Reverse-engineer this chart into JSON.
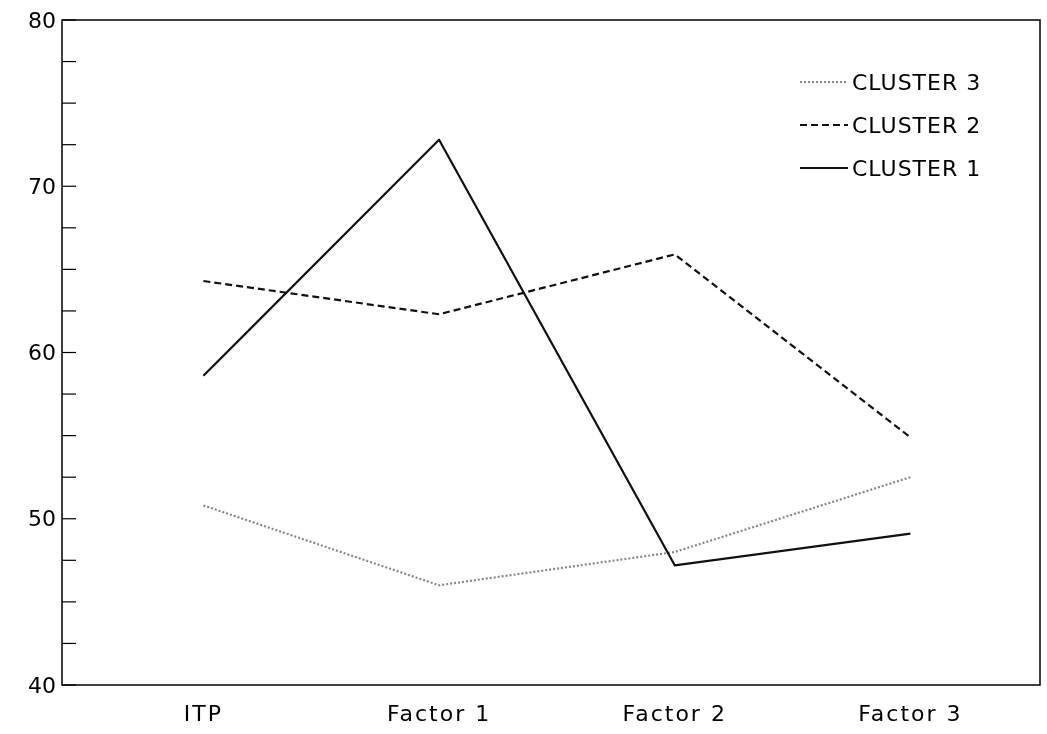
{
  "chart_data": {
    "type": "line",
    "categories": [
      "ITP",
      "Factor 1",
      "Factor 2",
      "Factor 3"
    ],
    "series": [
      {
        "name": "CLUSTER 3",
        "color": "#888888",
        "line_style": "dotted",
        "values": [
          50.8,
          46.0,
          48.0,
          52.5
        ]
      },
      {
        "name": "CLUSTER 2",
        "color": "#111111",
        "line_style": "dashed",
        "values": [
          64.3,
          62.3,
          65.9,
          54.9
        ]
      },
      {
        "name": "CLUSTER 1",
        "color": "#111111",
        "line_style": "solid",
        "values": [
          58.6,
          72.8,
          47.2,
          49.1
        ]
      }
    ],
    "ylim": [
      40,
      80
    ],
    "yticks": [
      40,
      {
        "value": 42.5,
        "label": null
      },
      {
        "value": 45,
        "label": null
      },
      {
        "value": 47.5,
        "label": null
      },
      50,
      {
        "value": 52.5,
        "label": null
      },
      {
        "value": 55,
        "label": null
      },
      {
        "value": 57.5,
        "label": null
      },
      60,
      {
        "value": 62.5,
        "label": null
      },
      {
        "value": 65,
        "label": null
      },
      {
        "value": 67.5,
        "label": null
      },
      70,
      {
        "value": 72.5,
        "label": null
      },
      {
        "value": 75,
        "label": null
      },
      {
        "value": 77.5,
        "label": null
      },
      80
    ],
    "legend": "top right"
  }
}
